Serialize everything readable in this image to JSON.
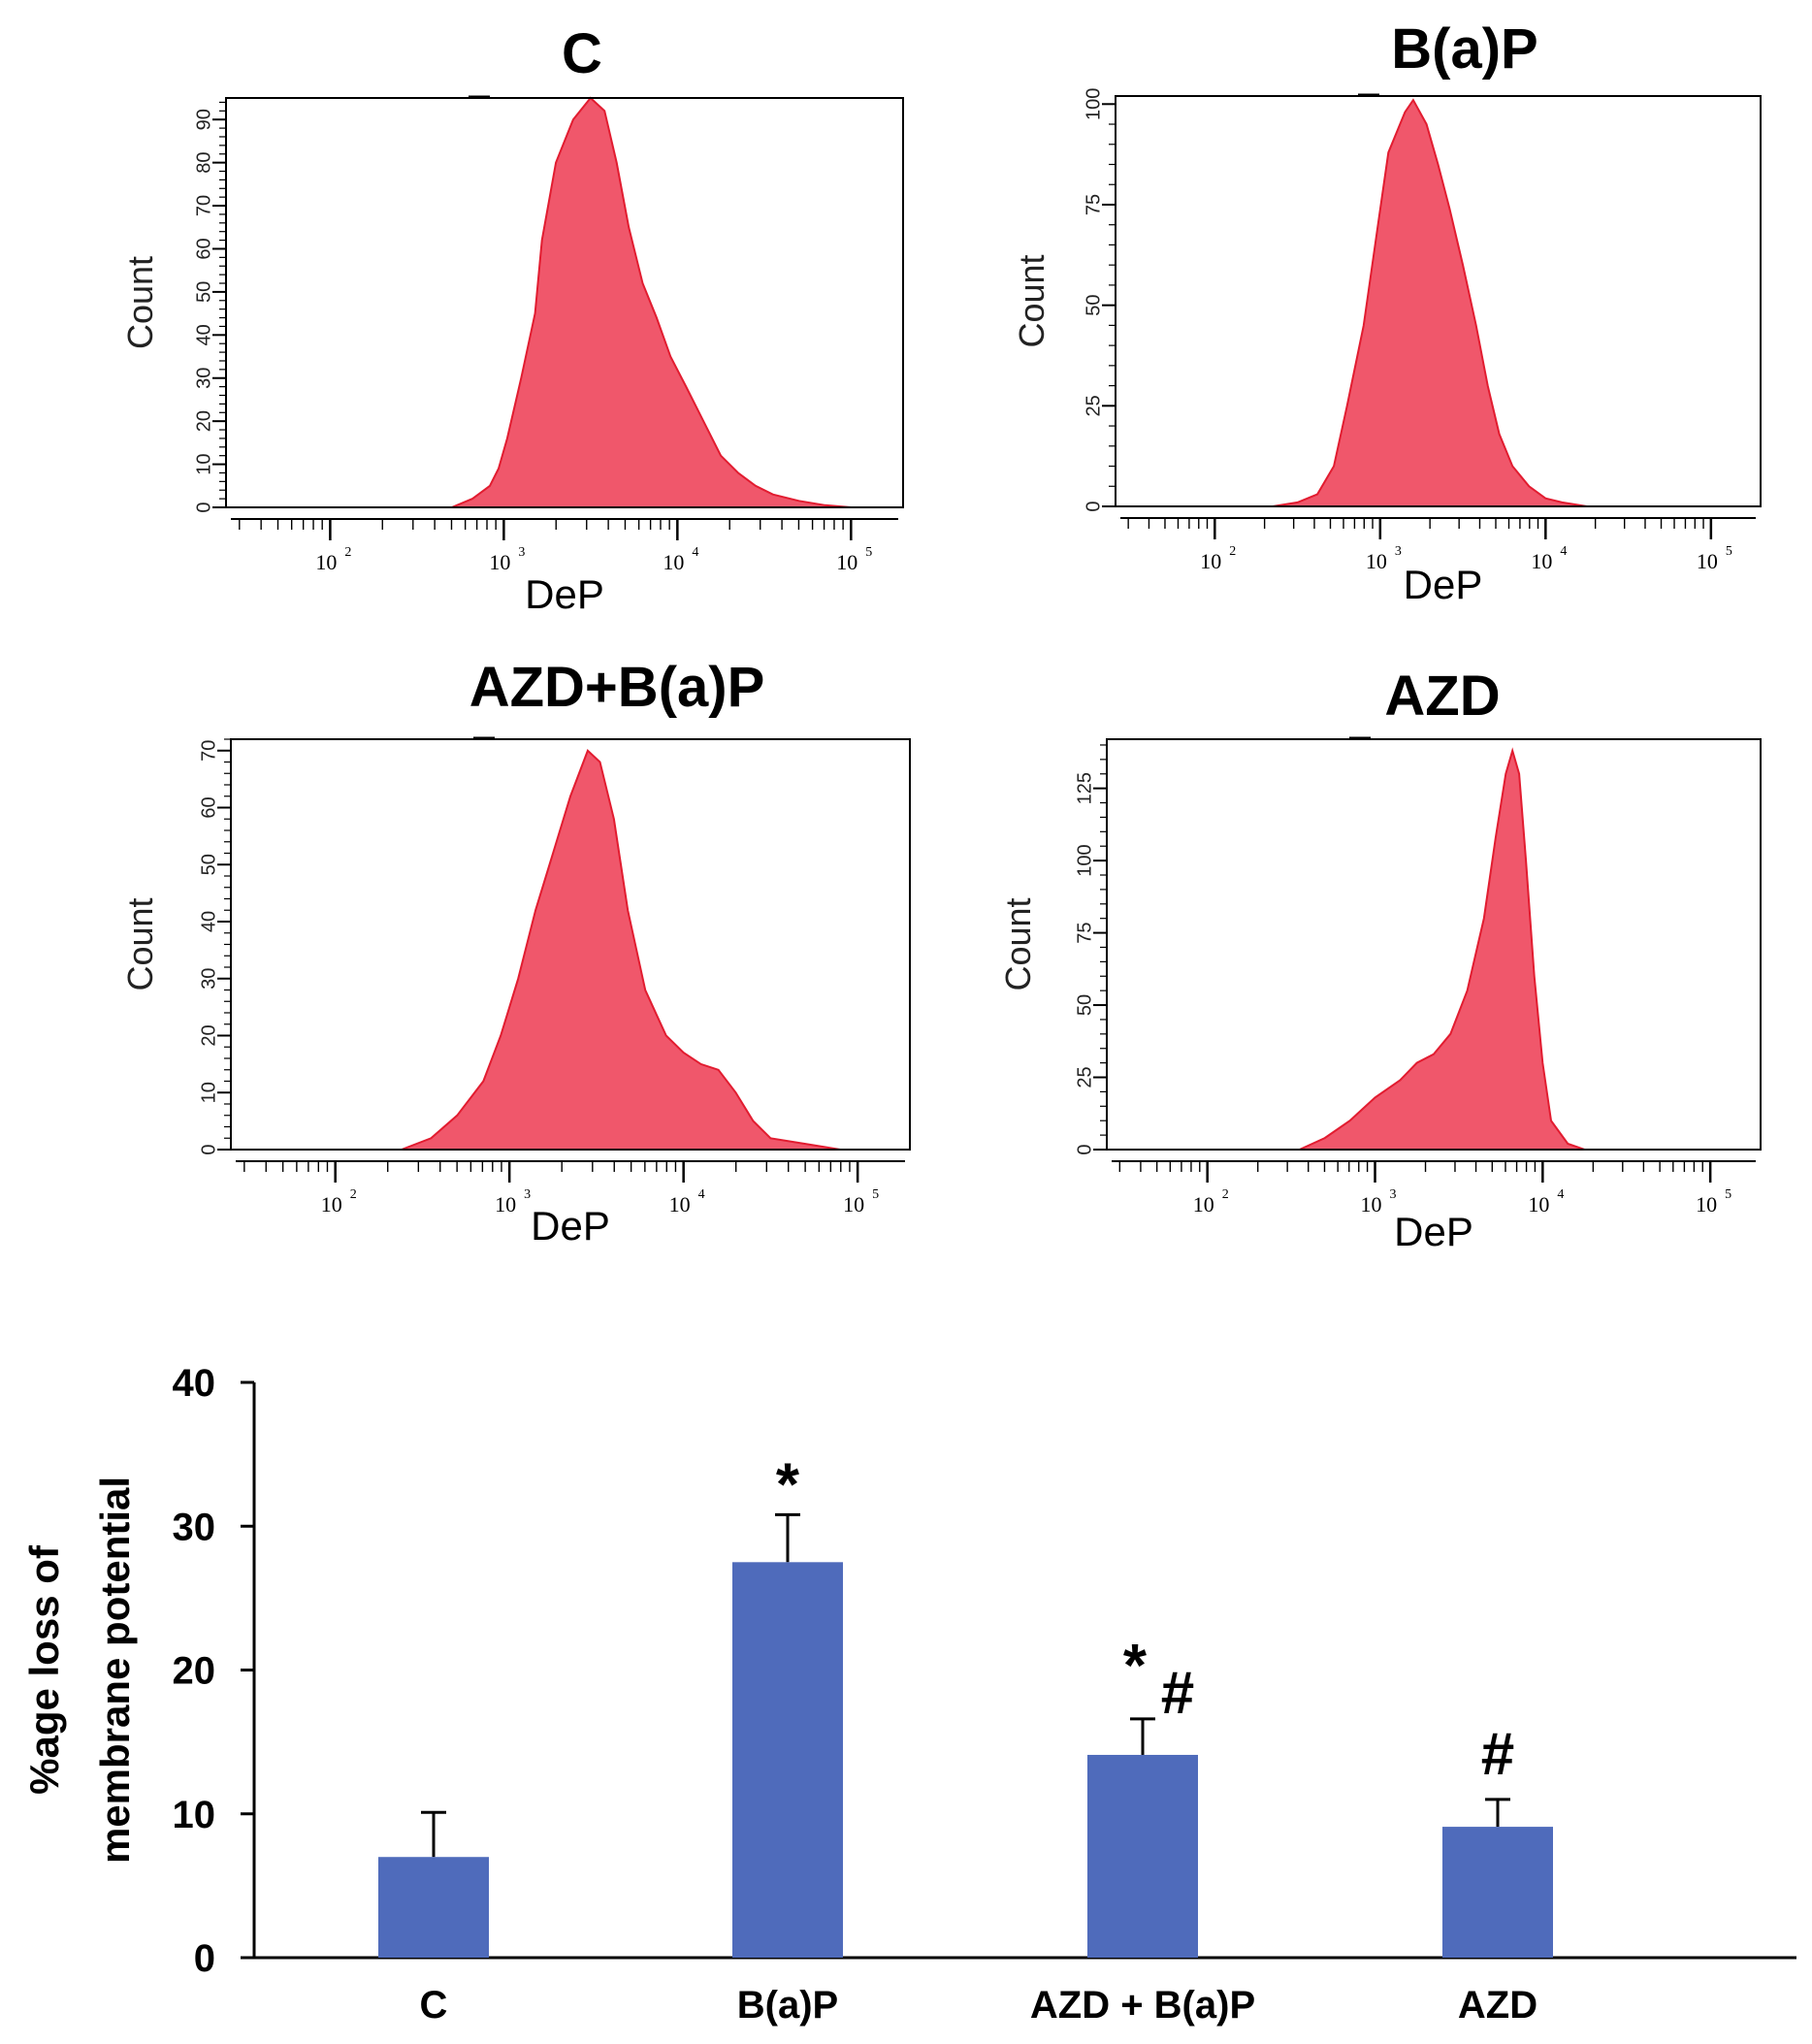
{
  "chart_data": [
    {
      "type": "histogram",
      "title": "C",
      "xlabel": "DeP",
      "ylabel": "Count",
      "x_scale": "log",
      "xlim_log10": [
        1.4,
        5.3
      ],
      "x_ticks": [
        {
          "base": "10",
          "exp": "2",
          "log": 2
        },
        {
          "base": "10",
          "exp": "3",
          "log": 3
        },
        {
          "base": "10",
          "exp": "4",
          "log": 4
        },
        {
          "base": "10",
          "exp": "5",
          "log": 5
        }
      ],
      "ylim": [
        0,
        95
      ],
      "y_ticks": [
        "0",
        "10",
        "20",
        "30",
        "40",
        "50",
        "60",
        "70",
        "80",
        "90"
      ],
      "y_tick_values": [
        0,
        10,
        20,
        30,
        40,
        50,
        60,
        70,
        80,
        90
      ],
      "profile": [
        [
          2.7,
          0
        ],
        [
          2.82,
          2
        ],
        [
          2.92,
          5
        ],
        [
          2.97,
          9
        ],
        [
          3.02,
          16
        ],
        [
          3.1,
          30
        ],
        [
          3.18,
          45
        ],
        [
          3.22,
          62
        ],
        [
          3.3,
          80
        ],
        [
          3.4,
          90
        ],
        [
          3.5,
          95
        ],
        [
          3.58,
          92
        ],
        [
          3.65,
          80
        ],
        [
          3.72,
          65
        ],
        [
          3.8,
          52
        ],
        [
          3.88,
          44
        ],
        [
          3.96,
          35
        ],
        [
          4.05,
          28
        ],
        [
          4.15,
          20
        ],
        [
          4.25,
          12
        ],
        [
          4.35,
          8
        ],
        [
          4.45,
          5
        ],
        [
          4.55,
          3
        ],
        [
          4.7,
          1.5
        ],
        [
          4.85,
          0.5
        ],
        [
          5.0,
          0
        ]
      ]
    },
    {
      "type": "histogram",
      "title": "B(a)P",
      "xlabel": "DeP",
      "ylabel": "Count",
      "x_scale": "log",
      "xlim_log10": [
        1.4,
        5.3
      ],
      "x_ticks": [
        {
          "base": "10",
          "exp": "2",
          "log": 2
        },
        {
          "base": "10",
          "exp": "3",
          "log": 3
        },
        {
          "base": "10",
          "exp": "4",
          "log": 4
        },
        {
          "base": "10",
          "exp": "5",
          "log": 5
        }
      ],
      "ylim": [
        0,
        102
      ],
      "y_ticks": [
        "0",
        "25",
        "50",
        "75",
        "100"
      ],
      "y_tick_values": [
        0,
        25,
        50,
        75,
        100
      ],
      "profile": [
        [
          2.35,
          0
        ],
        [
          2.5,
          1
        ],
        [
          2.62,
          3
        ],
        [
          2.72,
          10
        ],
        [
          2.8,
          25
        ],
        [
          2.9,
          45
        ],
        [
          2.98,
          68
        ],
        [
          3.05,
          88
        ],
        [
          3.15,
          98
        ],
        [
          3.2,
          101
        ],
        [
          3.28,
          95
        ],
        [
          3.35,
          85
        ],
        [
          3.42,
          74
        ],
        [
          3.5,
          60
        ],
        [
          3.58,
          45
        ],
        [
          3.65,
          30
        ],
        [
          3.72,
          18
        ],
        [
          3.8,
          10
        ],
        [
          3.9,
          5
        ],
        [
          4.0,
          2
        ],
        [
          4.1,
          1
        ],
        [
          4.25,
          0
        ]
      ]
    },
    {
      "type": "histogram",
      "title": "AZD+B(a)P",
      "xlabel": "DeP",
      "ylabel": "Count",
      "x_scale": "log",
      "xlim_log10": [
        1.4,
        5.3
      ],
      "x_ticks": [
        {
          "base": "10",
          "exp": "2",
          "log": 2
        },
        {
          "base": "10",
          "exp": "3",
          "log": 3
        },
        {
          "base": "10",
          "exp": "4",
          "log": 4
        },
        {
          "base": "10",
          "exp": "5",
          "log": 5
        }
      ],
      "ylim": [
        0,
        72
      ],
      "y_ticks": [
        "0",
        "10",
        "20",
        "30",
        "40",
        "50",
        "60",
        "70"
      ],
      "y_tick_values": [
        0,
        10,
        20,
        30,
        40,
        50,
        60,
        70
      ],
      "profile": [
        [
          2.38,
          0
        ],
        [
          2.55,
          2
        ],
        [
          2.7,
          6
        ],
        [
          2.85,
          12
        ],
        [
          2.95,
          20
        ],
        [
          3.05,
          30
        ],
        [
          3.15,
          42
        ],
        [
          3.25,
          52
        ],
        [
          3.35,
          62
        ],
        [
          3.45,
          70
        ],
        [
          3.52,
          68
        ],
        [
          3.6,
          58
        ],
        [
          3.68,
          42
        ],
        [
          3.78,
          28
        ],
        [
          3.9,
          20
        ],
        [
          4.0,
          17
        ],
        [
          4.1,
          15
        ],
        [
          4.2,
          14
        ],
        [
          4.3,
          10
        ],
        [
          4.4,
          5
        ],
        [
          4.5,
          2
        ],
        [
          4.7,
          1
        ],
        [
          4.9,
          0
        ]
      ]
    },
    {
      "type": "histogram",
      "title": "AZD",
      "xlabel": "DeP",
      "ylabel": "Count",
      "x_scale": "log",
      "xlim_log10": [
        1.4,
        5.3
      ],
      "x_ticks": [
        {
          "base": "10",
          "exp": "2",
          "log": 2
        },
        {
          "base": "10",
          "exp": "3",
          "log": 3
        },
        {
          "base": "10",
          "exp": "4",
          "log": 4
        },
        {
          "base": "10",
          "exp": "5",
          "log": 5
        }
      ],
      "ylim": [
        0,
        142
      ],
      "y_ticks": [
        "0",
        "25",
        "50",
        "75",
        "100",
        "125"
      ],
      "y_tick_values": [
        0,
        25,
        50,
        75,
        100,
        125
      ],
      "profile": [
        [
          2.55,
          0
        ],
        [
          2.7,
          4
        ],
        [
          2.85,
          10
        ],
        [
          3.0,
          18
        ],
        [
          3.15,
          24
        ],
        [
          3.25,
          30
        ],
        [
          3.35,
          33
        ],
        [
          3.45,
          40
        ],
        [
          3.55,
          55
        ],
        [
          3.65,
          80
        ],
        [
          3.72,
          108
        ],
        [
          3.78,
          130
        ],
        [
          3.82,
          138
        ],
        [
          3.86,
          130
        ],
        [
          3.9,
          100
        ],
        [
          3.95,
          60
        ],
        [
          4.0,
          30
        ],
        [
          4.05,
          10
        ],
        [
          4.15,
          2
        ],
        [
          4.25,
          0
        ]
      ]
    },
    {
      "type": "bar",
      "title": "",
      "xlabel": "",
      "ylabel": [
        "%age loss of",
        "membrane potential"
      ],
      "ylim": [
        0,
        40
      ],
      "y_ticks": [
        "0",
        "10",
        "20",
        "30",
        "40"
      ],
      "y_tick_values": [
        0,
        10,
        20,
        30,
        40
      ],
      "categories": [
        "C",
        "B(a)P",
        "AZD + B(a)P",
        "AZD"
      ],
      "values": [
        7,
        27.5,
        14.1,
        9.1
      ],
      "errors": [
        3.1,
        3.3,
        2.5,
        1.9
      ],
      "annotations": [
        {
          "category": "B(a)P",
          "parts": [
            "*"
          ]
        },
        {
          "category": "AZD + B(a)P",
          "parts": [
            "*",
            "#"
          ]
        },
        {
          "category": "AZD",
          "parts": [
            "#"
          ]
        }
      ]
    }
  ],
  "colors": {
    "histogram_fill": "#f0576b",
    "histogram_edge": "#e21c30",
    "bar_fill": "#4f6bbb",
    "axis": "#000000"
  }
}
